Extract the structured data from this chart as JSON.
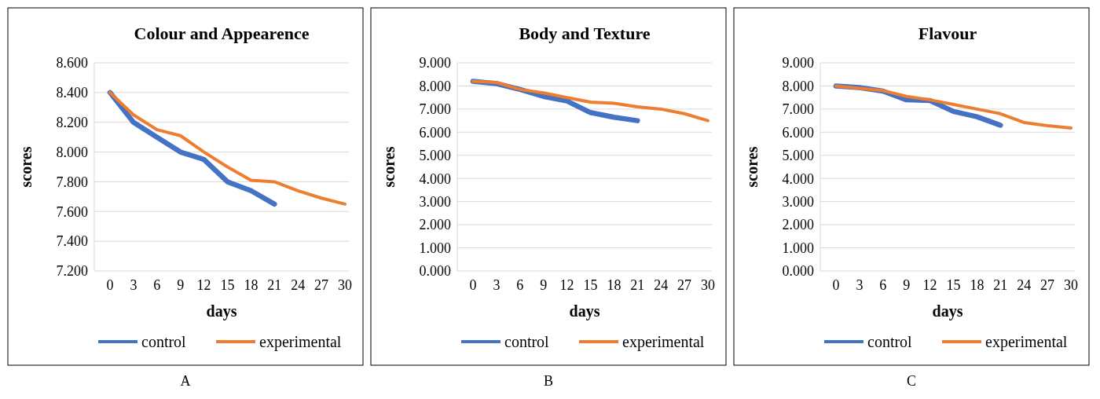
{
  "chart_data": [
    {
      "type": "line",
      "title": "Colour and Appearence",
      "xlabel": "days",
      "ylabel": "scores",
      "categories": [
        "0",
        "3",
        "6",
        "9",
        "12",
        "15",
        "18",
        "21",
        "24",
        "27",
        "30"
      ],
      "ylim": [
        7.2,
        8.6
      ],
      "yticks": [
        {
          "value": 7.2,
          "label": "7.200"
        },
        {
          "value": 7.4,
          "label": "7.400"
        },
        {
          "value": 7.6,
          "label": "7.600"
        },
        {
          "value": 7.8,
          "label": "7.800"
        },
        {
          "value": 8.0,
          "label": "8.000"
        },
        {
          "value": 8.2,
          "label": "8.200"
        },
        {
          "value": 8.4,
          "label": "8.400"
        },
        {
          "value": 8.6,
          "label": "8.600"
        }
      ],
      "grid": "y",
      "legend": "bottom",
      "annotations": [
        "A"
      ],
      "series": [
        {
          "name": "control",
          "color": "#4472c4",
          "values": [
            8.4,
            8.2,
            8.1,
            8.0,
            7.95,
            7.8,
            7.74,
            7.65,
            null,
            null,
            null
          ]
        },
        {
          "name": "experimental",
          "color": "#ed7d31",
          "values": [
            8.4,
            8.25,
            8.15,
            8.11,
            8.0,
            7.9,
            7.81,
            7.8,
            7.74,
            7.69,
            7.65
          ]
        }
      ]
    },
    {
      "type": "line",
      "title": "Body and Texture",
      "xlabel": "days",
      "ylabel": "scores",
      "categories": [
        "0",
        "3",
        "6",
        "9",
        "12",
        "15",
        "18",
        "21",
        "24",
        "27",
        "30"
      ],
      "ylim": [
        0,
        9
      ],
      "yticks": [
        {
          "value": 0,
          "label": "0.000"
        },
        {
          "value": 1,
          "label": "1.000"
        },
        {
          "value": 2,
          "label": "2.000"
        },
        {
          "value": 3,
          "label": "3.000"
        },
        {
          "value": 4,
          "label": "4.000"
        },
        {
          "value": 5,
          "label": "5.000"
        },
        {
          "value": 6,
          "label": "6.000"
        },
        {
          "value": 7,
          "label": "7.000"
        },
        {
          "value": 8,
          "label": "8.000"
        },
        {
          "value": 9,
          "label": "9.000"
        }
      ],
      "grid": "y",
      "legend": "bottom",
      "annotations": [
        "B"
      ],
      "series": [
        {
          "name": "control",
          "color": "#4472c4",
          "values": [
            8.2,
            8.1,
            7.85,
            7.55,
            7.35,
            6.85,
            6.65,
            6.5,
            null,
            null,
            null
          ]
        },
        {
          "name": "experimental",
          "color": "#ed7d31",
          "values": [
            8.2,
            8.15,
            7.85,
            7.7,
            7.5,
            7.3,
            7.25,
            7.1,
            7.0,
            6.8,
            6.5
          ]
        }
      ]
    },
    {
      "type": "line",
      "title": "Flavour",
      "xlabel": "days",
      "ylabel": "scores",
      "categories": [
        "0",
        "3",
        "6",
        "9",
        "12",
        "15",
        "18",
        "21",
        "24",
        "27",
        "30"
      ],
      "ylim": [
        0,
        9
      ],
      "yticks": [
        {
          "value": 0,
          "label": "0.000"
        },
        {
          "value": 1,
          "label": "1.000"
        },
        {
          "value": 2,
          "label": "2.000"
        },
        {
          "value": 3,
          "label": "3.000"
        },
        {
          "value": 4,
          "label": "4.000"
        },
        {
          "value": 5,
          "label": "5.000"
        },
        {
          "value": 6,
          "label": "6.000"
        },
        {
          "value": 7,
          "label": "7.000"
        },
        {
          "value": 8,
          "label": "8.000"
        },
        {
          "value": 9,
          "label": "9.000"
        }
      ],
      "grid": "y",
      "legend": "bottom",
      "annotations": [
        "C"
      ],
      "series": [
        {
          "name": "control",
          "color": "#4472c4",
          "values": [
            8.0,
            7.93,
            7.78,
            7.4,
            7.37,
            6.9,
            6.67,
            6.3,
            null,
            null,
            null
          ]
        },
        {
          "name": "experimental",
          "color": "#ed7d31",
          "values": [
            8.0,
            7.9,
            7.8,
            7.55,
            7.4,
            7.2,
            7.0,
            6.8,
            6.42,
            6.28,
            6.18
          ]
        }
      ]
    }
  ]
}
